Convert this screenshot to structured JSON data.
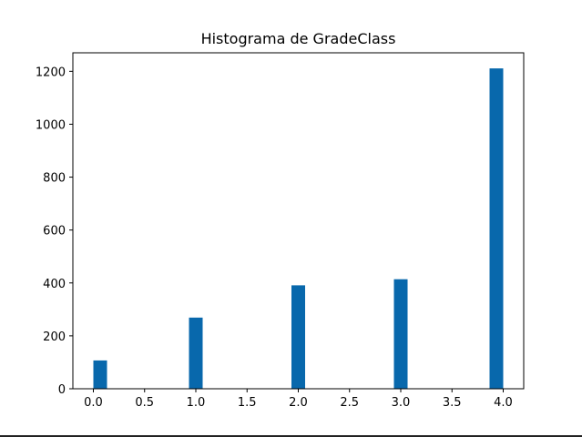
{
  "chart_data": {
    "type": "bar",
    "title": "Histograma de GradeClass",
    "xlabel": "",
    "ylabel": "",
    "xlim": [
      -0.2,
      4.2
    ],
    "ylim": [
      0,
      1270
    ],
    "x_ticks": [
      0.0,
      0.5,
      1.0,
      1.5,
      2.0,
      2.5,
      3.0,
      3.5,
      4.0
    ],
    "x_tick_labels": [
      "0.0",
      "0.5",
      "1.0",
      "1.5",
      "2.0",
      "2.5",
      "3.0",
      "3.5",
      "4.0"
    ],
    "y_ticks": [
      0,
      200,
      400,
      600,
      800,
      1000,
      1200
    ],
    "y_tick_labels": [
      "0",
      "200",
      "400",
      "600",
      "800",
      "1000",
      "1200"
    ],
    "bin_width": 0.1333,
    "grid": false,
    "bars": [
      {
        "x0": 0.0,
        "x1": 0.1333,
        "value": 107
      },
      {
        "x0": 0.9333,
        "x1": 1.0667,
        "value": 269
      },
      {
        "x0": 1.9333,
        "x1": 2.0667,
        "value": 391
      },
      {
        "x0": 2.9333,
        "x1": 3.0667,
        "value": 414
      },
      {
        "x0": 3.8667,
        "x1": 4.0,
        "value": 1211
      }
    ],
    "colors": {
      "bar": "#0868ac",
      "axes": "#000000",
      "background": "#ffffff"
    }
  }
}
